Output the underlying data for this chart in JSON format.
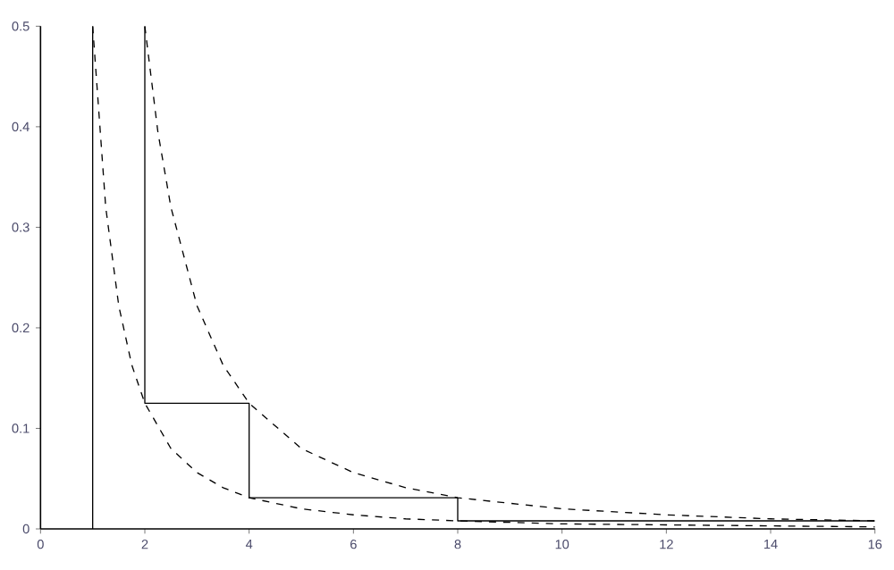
{
  "chart_data": {
    "type": "line",
    "xlim": [
      0,
      16
    ],
    "ylim": [
      0,
      0.5
    ],
    "xticks": [
      0,
      2,
      4,
      6,
      8,
      10,
      12,
      14,
      16
    ],
    "yticks": [
      0,
      0.1,
      0.2,
      0.3,
      0.4,
      0.5
    ],
    "grid": false,
    "marker": "none",
    "series": [
      {
        "color": "#000000",
        "line_style": "solid",
        "x": [
          1,
          1
        ],
        "values": [
          0,
          0.5
        ]
      },
      {
        "color": "#000000",
        "line_style": "solid",
        "x": [
          2,
          2,
          4,
          4,
          8,
          8,
          16
        ],
        "values": [
          0.5,
          0.125,
          0.125,
          0.031,
          0.031,
          0.008,
          0.008
        ]
      },
      {
        "color": "#000000",
        "line_style": "dashed",
        "x": [
          1,
          1.25,
          1.5,
          1.75,
          2,
          2.5,
          3,
          3.5,
          4,
          5,
          6,
          7,
          8,
          10,
          12,
          14,
          16
        ],
        "values": [
          0.5,
          0.32,
          0.222,
          0.163,
          0.125,
          0.08,
          0.056,
          0.041,
          0.031,
          0.02,
          0.014,
          0.01,
          0.008,
          0.005,
          0.004,
          0.003,
          0.002
        ]
      },
      {
        "color": "#000000",
        "line_style": "dashed",
        "x": [
          2,
          2.25,
          2.5,
          3,
          3.5,
          4,
          5,
          6,
          7,
          8,
          10,
          12,
          14,
          16
        ],
        "values": [
          0.5,
          0.395,
          0.32,
          0.222,
          0.163,
          0.125,
          0.08,
          0.056,
          0.041,
          0.031,
          0.02,
          0.014,
          0.01,
          0.008
        ]
      }
    ]
  }
}
